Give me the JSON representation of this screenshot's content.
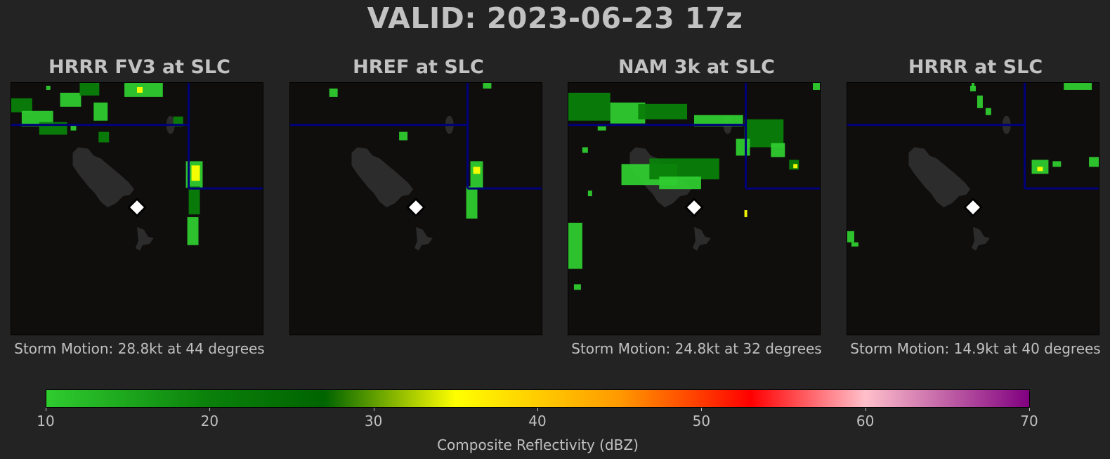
{
  "title": "VALID: 2023-06-23 17z",
  "colors": {
    "background": "#232323",
    "map_background": "#100d0d",
    "lake": "#2c2c2c",
    "boundary": "#00007a",
    "location_marker": "#ffffff"
  },
  "chart_data": [
    {
      "type": "heatmap",
      "title": "HRRR FV3 at SLC",
      "storm_motion": "Storm Motion: 28.8kt at 44 degrees",
      "grid": false
    },
    {
      "type": "heatmap",
      "title": "HREF at SLC",
      "storm_motion": "",
      "grid": false
    },
    {
      "type": "heatmap",
      "title": "NAM 3k at SLC",
      "storm_motion": "Storm Motion: 24.8kt at 32 degrees",
      "grid": false
    },
    {
      "type": "heatmap",
      "title": "HRRR at SLC",
      "storm_motion": "Storm Motion: 14.9kt at 40 degrees",
      "grid": false
    }
  ],
  "colorbar": {
    "label": "Composite Reflectivity (dBZ)",
    "range": [
      10,
      70
    ],
    "ticks": [
      "10",
      "20",
      "30",
      "40",
      "50",
      "60",
      "70"
    ],
    "stops": [
      {
        "value": 10,
        "color": "#2fcc2f"
      },
      {
        "value": 20,
        "color": "#0a800a"
      },
      {
        "value": 27,
        "color": "#006400"
      },
      {
        "value": 35,
        "color": "#ffff00"
      },
      {
        "value": 45,
        "color": "#ff9900"
      },
      {
        "value": 53,
        "color": "#ff0000"
      },
      {
        "value": 60,
        "color": "#ffc0cb"
      },
      {
        "value": 70,
        "color": "#800080"
      }
    ]
  }
}
